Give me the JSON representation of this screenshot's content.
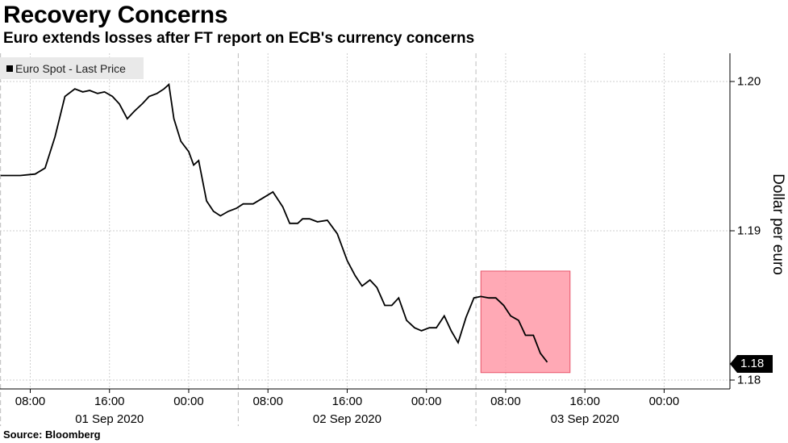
{
  "title": "Recovery Concerns",
  "subtitle": "Euro extends losses after FT report on ECB's currency concerns",
  "source": "Source: Bloomberg",
  "colors": {
    "line": "#000000",
    "highlight_fill": "#ff9aa8",
    "highlight_stroke": "#e8546a",
    "legend_bg": "#e9e9e9"
  },
  "chart_data": {
    "type": "line",
    "title": "Recovery Concerns",
    "subtitle": "Euro extends losses after FT report on ECB's currency concerns",
    "ylabel": "Dollar per euro",
    "ylim": [
      1.18,
      1.2
    ],
    "yticks": [
      "1.20",
      "1.19",
      "1.18"
    ],
    "xlabels": [
      "08:00",
      "16:00",
      "00:00",
      "08:00",
      "16:00",
      "00:00",
      "08:00",
      "16:00",
      "00:00"
    ],
    "date_labels": [
      "01 Sep 2020",
      "02 Sep 2020",
      "03 Sep 2020"
    ],
    "legend": [
      "Euro Spot - Last Price"
    ],
    "legend_position": "top-left",
    "last_value_label": "1.18",
    "grid": true,
    "highlight": {
      "x_range_hours": [
        53.5,
        62.5
      ],
      "y_range": [
        1.1805,
        1.1873
      ]
    },
    "series": [
      {
        "name": "Euro Spot - Last Price",
        "x_hours": [
          5,
          7,
          8.5,
          9.5,
          10.5,
          11.5,
          12.5,
          13.3,
          14,
          14.8,
          15.5,
          16.3,
          17,
          17.8,
          18.5,
          19.3,
          20,
          20.8,
          21.5,
          22,
          22.5,
          23.2,
          24,
          24.5,
          25,
          25.8,
          26.5,
          27.2,
          28,
          28.8,
          29.5,
          30.5,
          31.5,
          32.5,
          33.5,
          34.2,
          35,
          35.5,
          36.2,
          37,
          38,
          39,
          40,
          40.8,
          41.5,
          42.3,
          43,
          43.8,
          44.5,
          45.2,
          46,
          46.8,
          47.5,
          48.3,
          49,
          49.8,
          50.5,
          51.2,
          52,
          52.8,
          53.5,
          54.3,
          55,
          55.8,
          56.5,
          57.3,
          58,
          58.8,
          59.5,
          60.2
        ],
        "values": [
          1.1937,
          1.1937,
          1.1938,
          1.1942,
          1.1963,
          1.199,
          1.1995,
          1.1993,
          1.1994,
          1.1992,
          1.1993,
          1.199,
          1.1985,
          1.1975,
          1.198,
          1.1985,
          1.199,
          1.1992,
          1.1995,
          1.1998,
          1.1975,
          1.196,
          1.1953,
          1.1944,
          1.1947,
          1.192,
          1.1913,
          1.191,
          1.1913,
          1.1915,
          1.1918,
          1.1918,
          1.1922,
          1.1926,
          1.1916,
          1.1905,
          1.1905,
          1.1908,
          1.1908,
          1.1906,
          1.1907,
          1.1898,
          1.188,
          1.187,
          1.1863,
          1.1867,
          1.1862,
          1.185,
          1.185,
          1.1855,
          1.184,
          1.1835,
          1.1833,
          1.1835,
          1.1835,
          1.1843,
          1.1833,
          1.1825,
          1.1842,
          1.1855,
          1.1856,
          1.1855,
          1.1855,
          1.185,
          1.1843,
          1.184,
          1.183,
          1.183,
          1.1818,
          1.1812
        ]
      }
    ]
  }
}
